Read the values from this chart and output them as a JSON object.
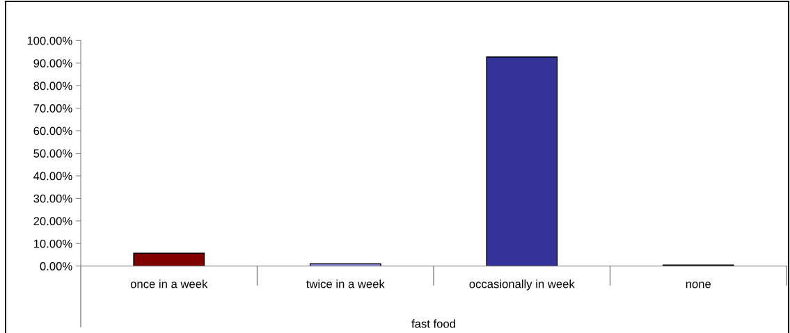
{
  "chart_data": {
    "type": "bar",
    "xlabel": "fast food",
    "categories": [
      "once in a week",
      "twice in a week",
      "occasionally in week",
      "none"
    ],
    "values": [
      5.7,
      1.0,
      92.7,
      0.5
    ],
    "colors": [
      "#800000",
      "#9999ff",
      "#333399",
      "#333333"
    ],
    "ylim": [
      0,
      100
    ],
    "yticks": [
      {
        "value": 0,
        "label": "0.00%"
      },
      {
        "value": 10,
        "label": "10.00%"
      },
      {
        "value": 20,
        "label": "20.00%"
      },
      {
        "value": 30,
        "label": "30.00%"
      },
      {
        "value": 40,
        "label": "40.00%"
      },
      {
        "value": 50,
        "label": "50.00%"
      },
      {
        "value": 60,
        "label": "60.00%"
      },
      {
        "value": 70,
        "label": "70.00%"
      },
      {
        "value": 80,
        "label": "80.00%"
      },
      {
        "value": 90,
        "label": "90.00%"
      },
      {
        "value": 100,
        "label": "100.00%"
      }
    ],
    "grid": false,
    "legend": false
  }
}
